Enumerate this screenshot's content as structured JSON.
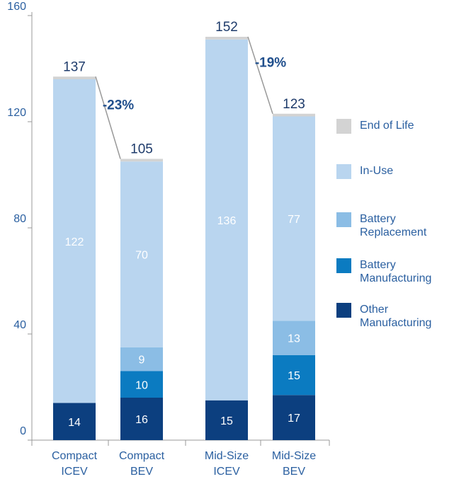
{
  "chart_data": {
    "type": "stacked-bar",
    "categories": [
      [
        "Compact",
        "ICEV"
      ],
      [
        "Compact",
        "BEV"
      ],
      [
        "Mid-Size",
        "ICEV"
      ],
      [
        "Mid-Size",
        "BEV"
      ]
    ],
    "series": [
      {
        "name": "Other Manufacturing",
        "color": "#0c3f7f",
        "values": [
          14,
          16,
          15,
          17
        ]
      },
      {
        "name": "Battery Manufacturing",
        "color": "#0b7bc1",
        "values": [
          null,
          10,
          null,
          15
        ]
      },
      {
        "name": "Battery Replacement",
        "color": "#8bbde5",
        "values": [
          null,
          9,
          null,
          13
        ]
      },
      {
        "name": "In-Use",
        "color": "#b9d5ef",
        "values": [
          122,
          70,
          136,
          77
        ]
      },
      {
        "name": "End of Life",
        "color": "#d3d3d3",
        "values": [
          1,
          1,
          1,
          1
        ]
      }
    ],
    "totals": [
      137,
      105,
      152,
      123
    ],
    "annotations": [
      "-23%",
      "-19%"
    ],
    "ylim": [
      0,
      160
    ],
    "yticks": [
      0,
      40,
      80,
      120,
      160
    ]
  }
}
